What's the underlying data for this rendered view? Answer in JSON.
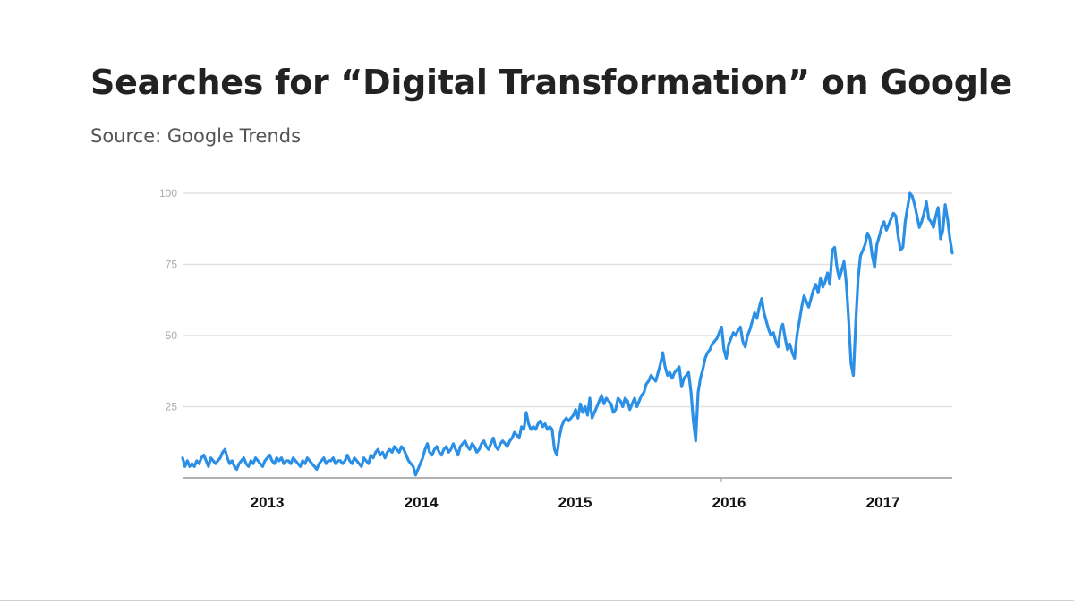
{
  "title": "Searches for “Digital Transformation” on Google",
  "subtitle": "Source: Google Trends",
  "colors": {
    "line": "#2b8fe6",
    "grid": "#e2e2e2",
    "title": "#222222",
    "subtitle": "#555555"
  },
  "chart_data": {
    "type": "line",
    "title": "Searches for “Digital Transformation” on Google",
    "subtitle": "Source: Google Trends",
    "xlabel": "",
    "ylabel": "",
    "ylim": [
      0,
      100
    ],
    "xlim": [
      "2012-07",
      "2017-07"
    ],
    "yticks": [
      25,
      50,
      75,
      100
    ],
    "xticks": [
      "2013",
      "2014",
      "2015",
      "2016",
      "2017"
    ],
    "grid": "horizontal",
    "series": [
      {
        "x_start": "2012-07",
        "x_step": "week",
        "values": [
          7,
          4,
          6,
          4,
          5,
          4,
          6,
          5,
          7,
          8,
          6,
          4,
          7,
          6,
          5,
          6,
          7,
          9,
          10,
          7,
          5,
          6,
          4,
          3,
          5,
          6,
          7,
          5,
          4,
          6,
          5,
          7,
          6,
          5,
          4,
          6,
          7,
          8,
          6,
          5,
          7,
          6,
          7,
          5,
          6,
          6,
          5,
          7,
          6,
          5,
          4,
          6,
          5,
          7,
          6,
          5,
          4,
          3,
          5,
          6,
          7,
          5,
          6,
          6,
          7,
          5,
          6,
          6,
          5,
          6,
          8,
          6,
          5,
          7,
          6,
          5,
          4,
          7,
          6,
          5,
          8,
          7,
          9,
          10,
          8,
          9,
          7,
          9,
          10,
          9,
          11,
          10,
          9,
          11,
          10,
          8,
          6,
          5,
          4,
          1,
          3,
          5,
          7,
          10,
          12,
          9,
          8,
          10,
          11,
          9,
          8,
          10,
          11,
          9,
          10,
          12,
          10,
          8,
          11,
          12,
          13,
          11,
          10,
          12,
          11,
          9,
          10,
          12,
          13,
          11,
          10,
          12,
          14,
          11,
          10,
          12,
          13,
          12,
          11,
          13,
          14,
          16,
          15,
          14,
          18,
          17,
          23,
          19,
          17,
          18,
          17,
          19,
          20,
          18,
          19,
          17,
          18,
          17,
          10,
          8,
          14,
          18,
          20,
          21,
          20,
          21,
          22,
          24,
          21,
          26,
          23,
          25,
          22,
          28,
          21,
          23,
          25,
          27,
          29,
          26,
          28,
          27,
          26,
          23,
          24,
          28,
          27,
          25,
          28,
          27,
          24,
          26,
          28,
          25,
          27,
          29,
          30,
          33,
          34,
          36,
          35,
          34,
          37,
          40,
          44,
          39,
          36,
          37,
          35,
          37,
          38,
          39,
          32,
          35,
          36,
          37,
          30,
          20,
          13,
          30,
          35,
          38,
          42,
          44,
          45,
          47,
          48,
          49,
          51,
          53,
          45,
          42,
          47,
          49,
          51,
          50,
          52,
          53,
          48,
          46,
          50,
          52,
          55,
          58,
          56,
          60,
          63,
          58,
          55,
          52,
          50,
          51,
          48,
          46,
          52,
          54,
          49,
          45,
          47,
          44,
          42,
          50,
          55,
          60,
          64,
          62,
          60,
          63,
          66,
          68,
          65,
          70,
          67,
          69,
          72,
          68,
          80,
          81,
          74,
          70,
          73,
          76,
          68,
          55,
          40,
          36,
          55,
          70,
          78,
          80,
          82,
          86,
          84,
          78,
          74,
          82,
          85,
          88,
          90,
          87,
          89,
          91,
          93,
          92,
          85,
          80,
          81,
          90,
          95,
          100,
          99,
          96,
          92,
          88,
          90,
          93,
          97,
          91,
          90,
          88,
          92,
          95,
          84,
          87,
          96,
          91,
          84,
          79
        ]
      }
    ]
  }
}
